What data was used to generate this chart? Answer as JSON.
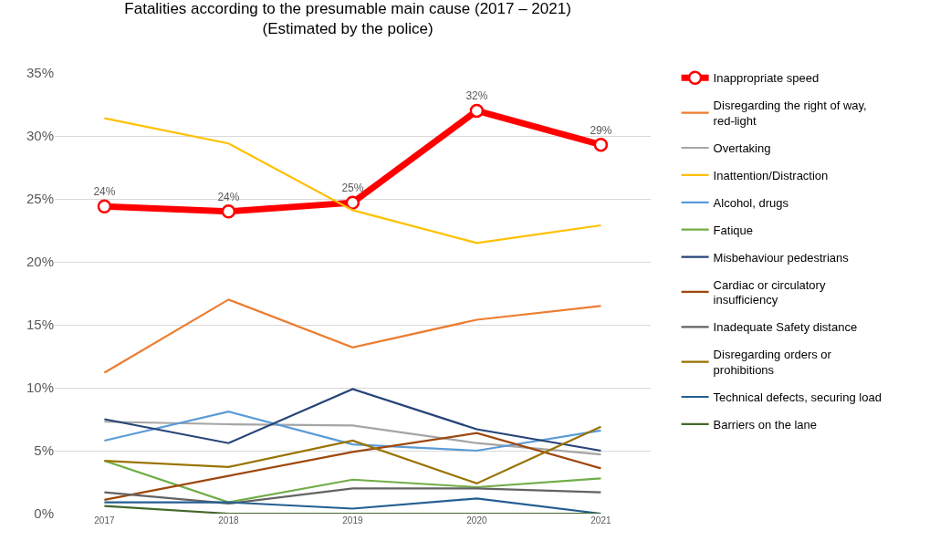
{
  "chart_data": {
    "type": "line",
    "title": "Fatalities according to the presumable main cause (2017 – 2021)",
    "subtitle": "(Estimated by the police)",
    "categories": [
      "2017",
      "2018",
      "2019",
      "2020",
      "2021"
    ],
    "ylim": [
      0,
      35
    ],
    "yticks": [
      {
        "value": 0,
        "label": "0%"
      },
      {
        "value": 5,
        "label": "5%"
      },
      {
        "value": 10,
        "label": "10%"
      },
      {
        "value": 15,
        "label": "15%"
      },
      {
        "value": 20,
        "label": "20%"
      },
      {
        "value": 25,
        "label": "25%"
      },
      {
        "value": 30,
        "label": "30%"
      },
      {
        "value": 35,
        "label": "35%"
      }
    ],
    "grid": "y",
    "legend": "right",
    "line_style": "solid",
    "series": [
      {
        "name": "Inappropriate speed",
        "color": "#ff0000",
        "marker": "circle",
        "values": [
          24.4,
          24.0,
          24.7,
          32.0,
          29.3
        ],
        "value_labels": [
          "24%",
          "24%",
          "25%",
          "32%",
          "29%"
        ]
      },
      {
        "name": "Disregarding the right of way, red-light",
        "color": "#ed7d31",
        "values": [
          11.2,
          17.0,
          13.2,
          15.4,
          16.5
        ]
      },
      {
        "name": "Overtaking",
        "color": "#a5a5a5",
        "values": [
          7.3,
          7.1,
          7.0,
          5.6,
          4.7
        ]
      },
      {
        "name": "Inattention/Distraction",
        "color": "#ffc000",
        "values": [
          31.4,
          29.4,
          24.1,
          21.5,
          22.9
        ]
      },
      {
        "name": "Alcohol, drugs",
        "color": "#5b9bd5",
        "values": [
          5.8,
          8.1,
          5.5,
          5.0,
          6.6
        ]
      },
      {
        "name": "Fatique",
        "color": "#70ad47",
        "values": [
          4.2,
          0.9,
          2.7,
          2.1,
          2.8
        ]
      },
      {
        "name": "Misbehaviour pedestrians",
        "color": "#264478",
        "values": [
          7.5,
          5.6,
          9.9,
          6.7,
          5.0
        ]
      },
      {
        "name": "Cardiac or circulatory insufficiency",
        "color": "#9e480e",
        "values": [
          1.1,
          3.0,
          4.9,
          6.4,
          3.6
        ]
      },
      {
        "name": "Inadequate Safety distance",
        "color": "#636363",
        "values": [
          1.7,
          0.8,
          2.0,
          2.0,
          1.7
        ]
      },
      {
        "name": "Disregarding orders or prohibitions",
        "color": "#997300",
        "values": [
          4.2,
          3.7,
          5.8,
          2.4,
          6.9
        ]
      },
      {
        "name": "Technical defects, securing load",
        "color": "#255e91",
        "values": [
          0.9,
          0.9,
          0.4,
          1.2,
          0.0
        ]
      },
      {
        "name": "Barriers on the lane",
        "color": "#43682b",
        "values": [
          0.6,
          0.0,
          0.0,
          0.0,
          0.0
        ]
      }
    ]
  }
}
